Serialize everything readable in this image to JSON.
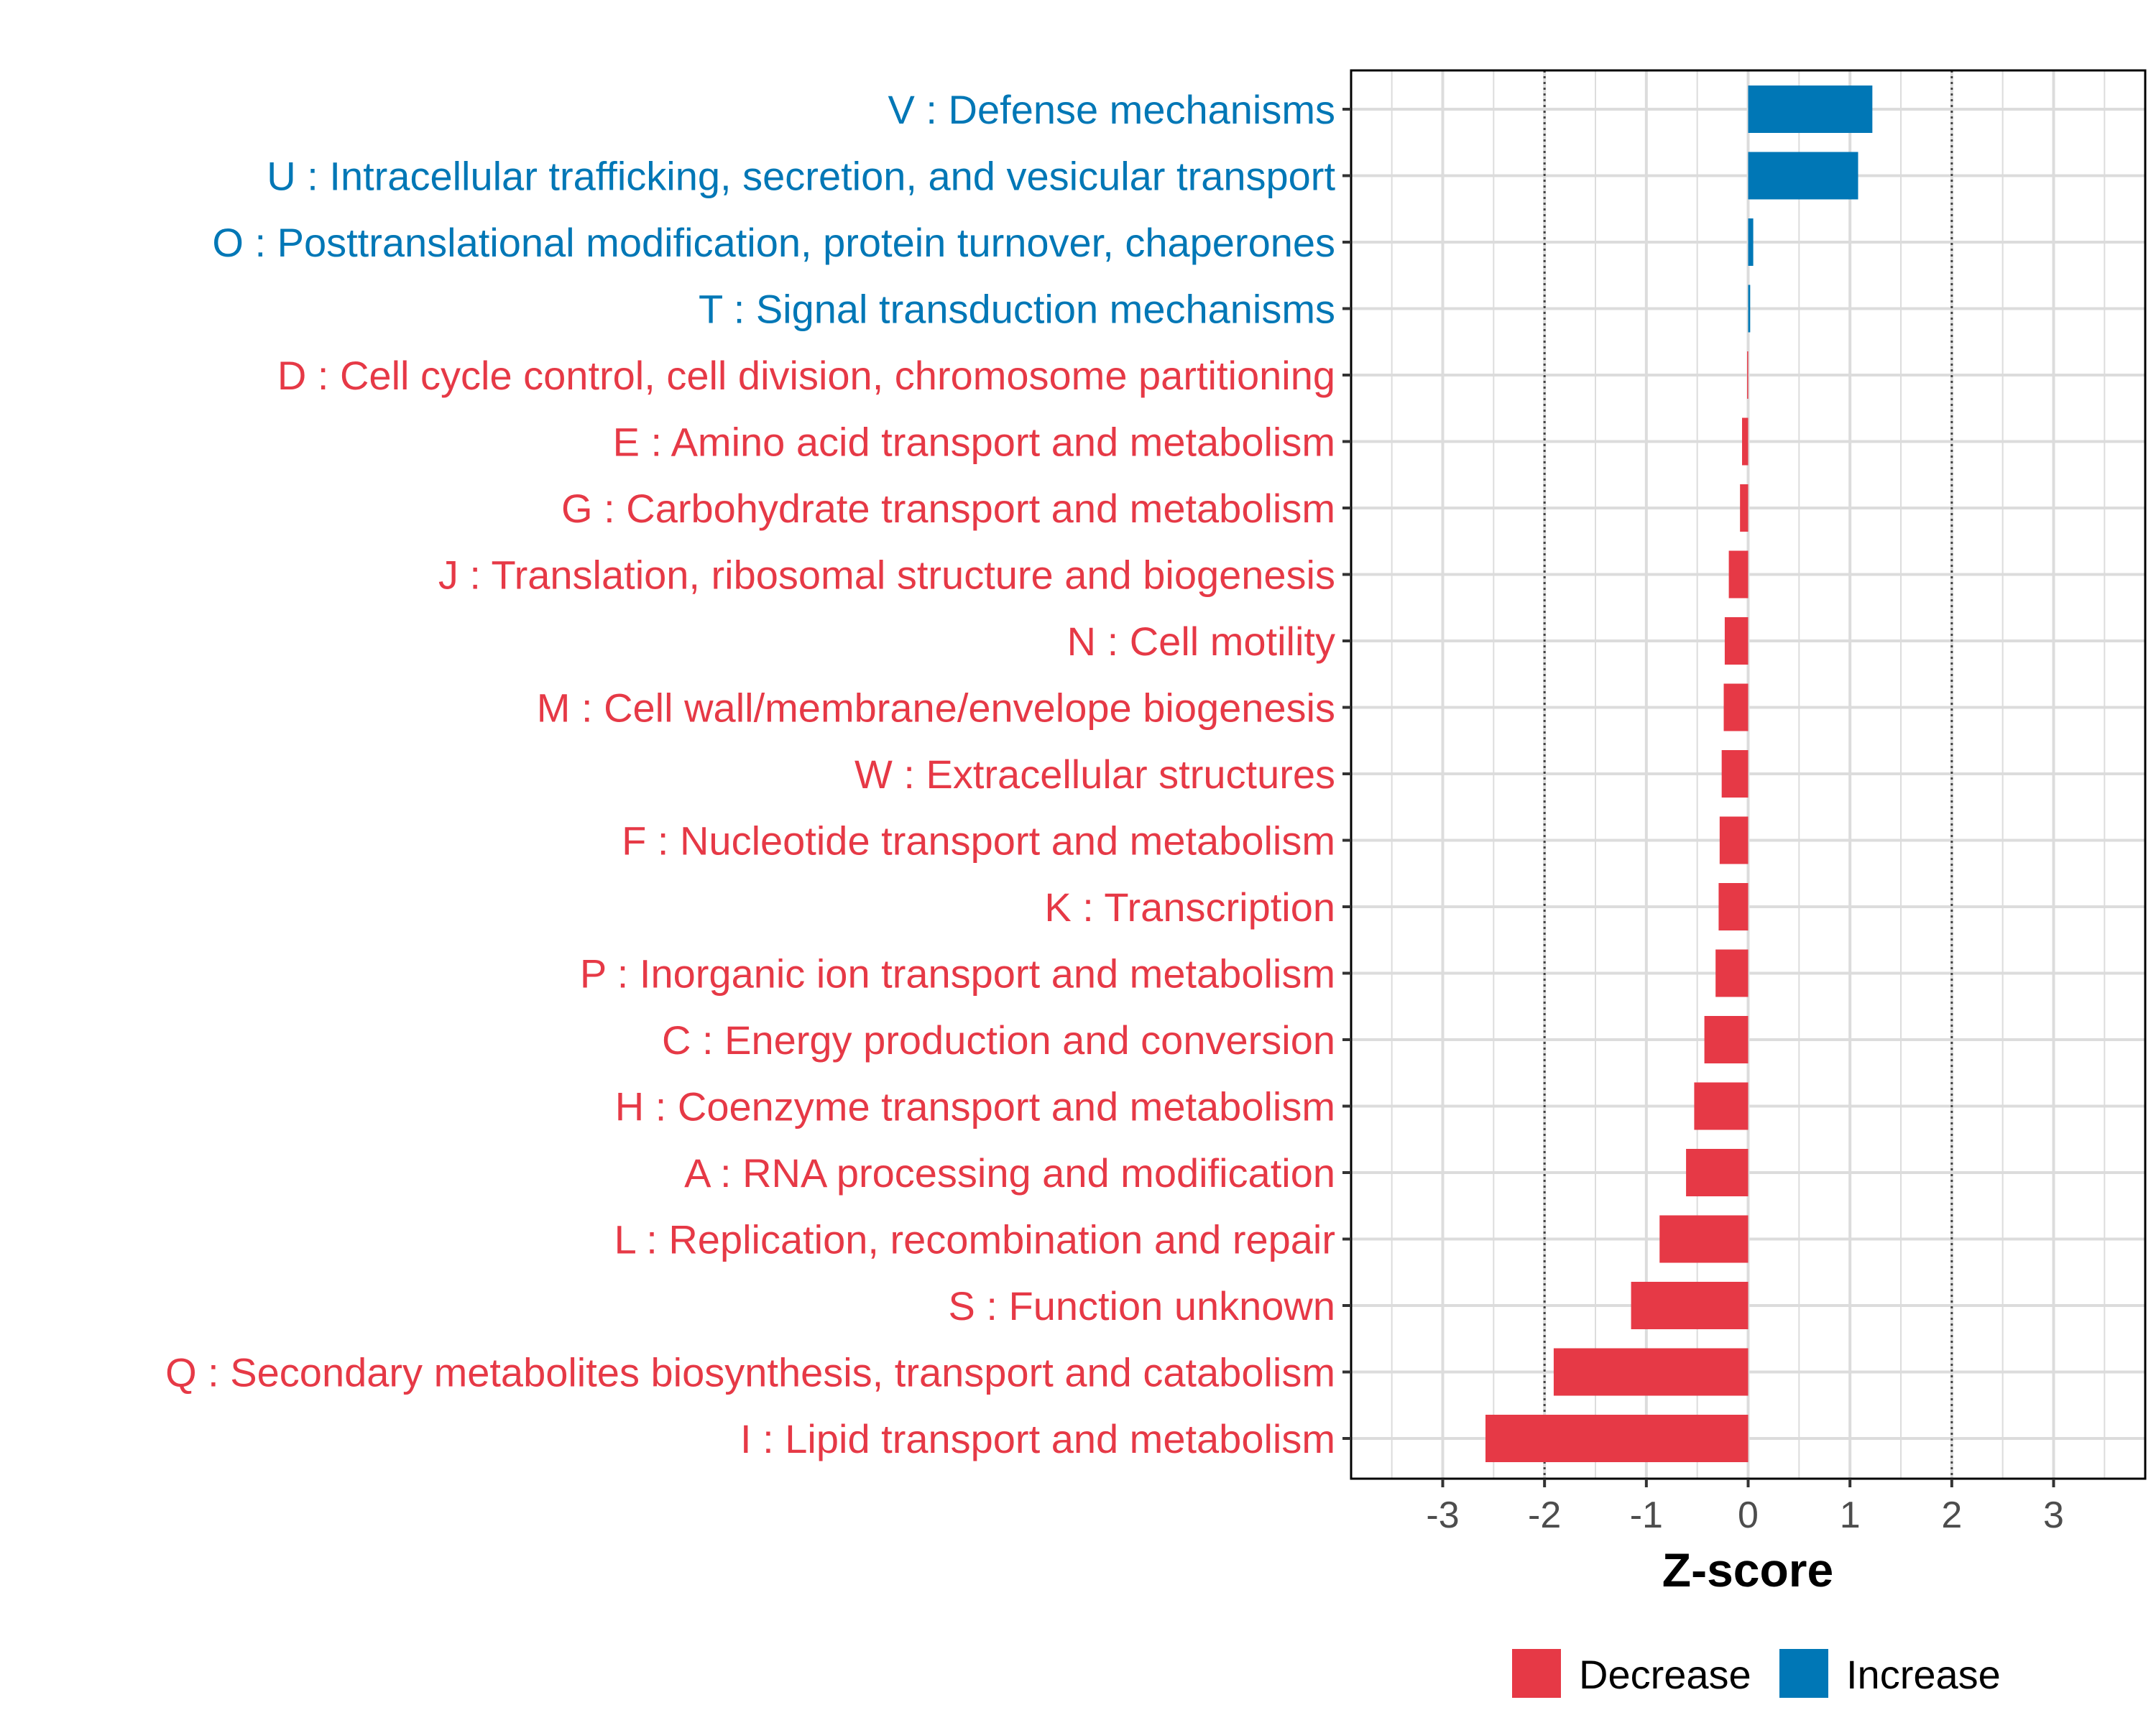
{
  "chart_data": {
    "type": "bar",
    "orientation": "horizontal",
    "title": "",
    "xlabel": "Z-score",
    "ylabel": "",
    "xlim": [
      -3.9,
      3.9
    ],
    "x_ticks": [
      -3,
      -2,
      -1,
      0,
      1,
      2,
      3
    ],
    "reference_lines": [
      -2,
      2
    ],
    "grid": true,
    "legend_position": "bottom",
    "colors": {
      "Decrease": "#e63946",
      "Increase": "#0077b6"
    },
    "legend": [
      {
        "name": "Decrease"
      },
      {
        "name": "Increase"
      }
    ],
    "categories": [
      "V : Defense mechanisms",
      "U : Intracellular trafficking, secretion, and vesicular transport",
      "O : Posttranslational modification, protein turnover, chaperones",
      "T : Signal transduction mechanisms",
      "D : Cell cycle control, cell division, chromosome partitioning",
      "E : Amino acid transport and metabolism",
      "G : Carbohydrate transport and metabolism",
      "J : Translation, ribosomal structure and biogenesis",
      "N : Cell motility",
      "M : Cell wall/membrane/envelope biogenesis",
      "W : Extracellular structures",
      "F : Nucleotide transport and metabolism",
      "K : Transcription",
      "P : Inorganic ion transport and metabolism",
      "C : Energy production and conversion",
      "H : Coenzyme transport and metabolism",
      "A : RNA processing and modification",
      "L : Replication, recombination and repair",
      "S : Function unknown",
      "Q : Secondary metabolites biosynthesis, transport and catabolism",
      "I : Lipid transport and metabolism"
    ],
    "values": [
      1.22,
      1.08,
      0.05,
      0.02,
      -0.01,
      -0.06,
      -0.08,
      -0.19,
      -0.23,
      -0.24,
      -0.26,
      -0.28,
      -0.29,
      -0.32,
      -0.43,
      -0.53,
      -0.61,
      -0.87,
      -1.15,
      -1.91,
      -2.58
    ],
    "groups": [
      "Increase",
      "Increase",
      "Increase",
      "Increase",
      "Decrease",
      "Decrease",
      "Decrease",
      "Decrease",
      "Decrease",
      "Decrease",
      "Decrease",
      "Decrease",
      "Decrease",
      "Decrease",
      "Decrease",
      "Decrease",
      "Decrease",
      "Decrease",
      "Decrease",
      "Decrease",
      "Decrease"
    ]
  }
}
